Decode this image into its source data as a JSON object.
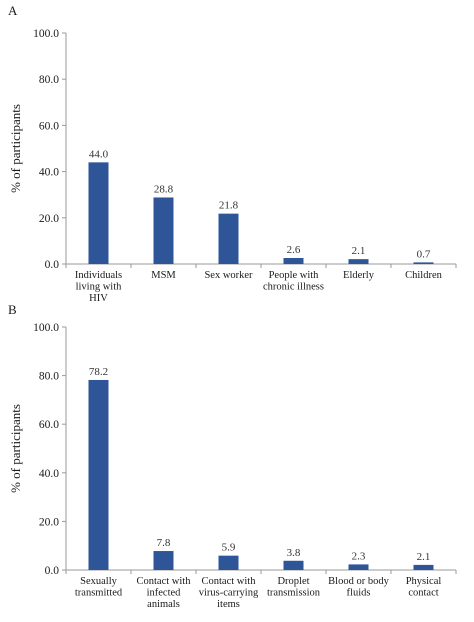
{
  "colors": {
    "bar": "#2e5597"
  },
  "chart_data": [
    {
      "panel": "A",
      "type": "bar",
      "ylabel": "% of participants",
      "ylim": [
        0,
        100
      ],
      "yticks": [
        "0.0",
        "20.0",
        "40.0",
        "60.0",
        "80.0",
        "100.0"
      ],
      "categories": [
        [
          "Individuals",
          "living with",
          "HIV"
        ],
        [
          "MSM"
        ],
        [
          "Sex worker"
        ],
        [
          "People with",
          "chronic illness"
        ],
        [
          "Elderly"
        ],
        [
          "Children"
        ]
      ],
      "values": [
        44.0,
        28.8,
        21.8,
        2.6,
        2.1,
        0.7
      ],
      "labels": [
        "44.0",
        "28.8",
        "21.8",
        "2.6",
        "2.1",
        "0.7"
      ]
    },
    {
      "panel": "B",
      "type": "bar",
      "ylabel": "% of participants",
      "ylim": [
        0,
        100
      ],
      "yticks": [
        "0.0",
        "20.0",
        "40.0",
        "60.0",
        "80.0",
        "100.0"
      ],
      "categories": [
        [
          "Sexually",
          "transmitted"
        ],
        [
          "Contact with",
          "infected",
          "animals"
        ],
        [
          "Contact with",
          "virus-carrying",
          "items"
        ],
        [
          "Droplet",
          "transmission"
        ],
        [
          "Blood or body",
          "fluids"
        ],
        [
          "Physical",
          "contact"
        ]
      ],
      "values": [
        78.2,
        7.8,
        5.9,
        3.8,
        2.3,
        2.1
      ],
      "labels": [
        "78.2",
        "7.8",
        "5.9",
        "3.8",
        "2.3",
        "2.1"
      ]
    }
  ]
}
